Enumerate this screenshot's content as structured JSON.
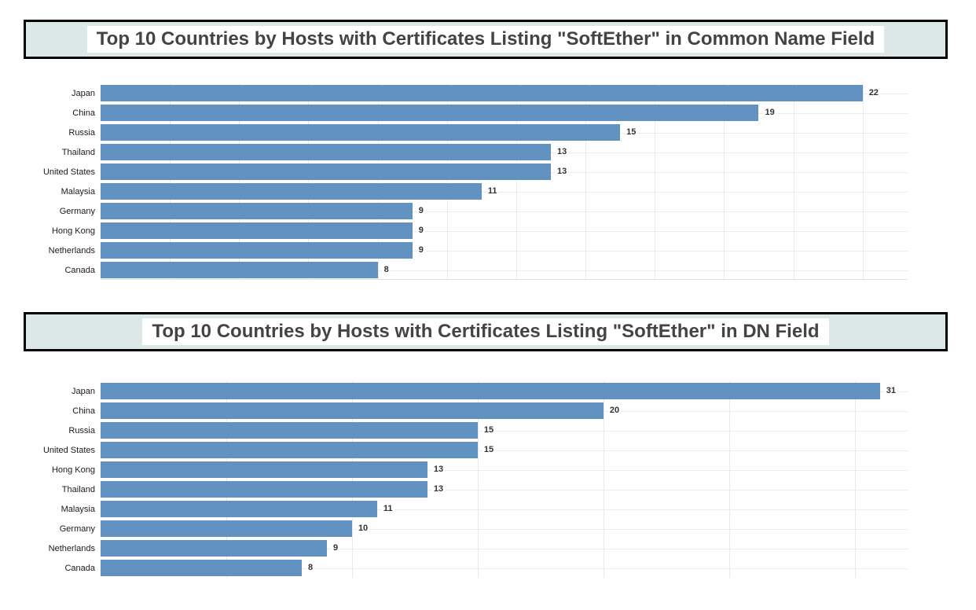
{
  "theme": {
    "bar_color": "#6292c2",
    "vertical_grid_color": "#e9e9e9",
    "category_grid_color": "#ebebeb",
    "title_text_color": "#444444",
    "title_box_bg": "#dce8e8",
    "title_box_border": "#000000",
    "value_label_color": "#333333",
    "category_label_color": "#1a1a1a",
    "page_bg": "#ffffff"
  },
  "chart_data": [
    {
      "type": "bar",
      "orientation": "horizontal",
      "title": "Top 10 Countries by Hosts with Certificates Listing \"SoftEther\" in Common Name Field",
      "categories": [
        "Japan",
        "China",
        "Russia",
        "Thailand",
        "United States",
        "Malaysia",
        "Germany",
        "Hong Kong",
        "Netherlands",
        "Canada"
      ],
      "values": [
        22,
        19,
        15,
        13,
        13,
        11,
        9,
        9,
        9,
        8
      ],
      "xlabel": "",
      "ylabel": "",
      "xlim": [
        0,
        23.3
      ],
      "x_dtick": 2,
      "grid": true,
      "legend": false,
      "value_labels": true,
      "bottom_axis": true,
      "bar_color": "#6292c2"
    },
    {
      "type": "bar",
      "orientation": "horizontal",
      "title": "Top 10 Countries by Hosts with Certificates Listing \"SoftEther\" in DN Field",
      "categories": [
        "Japan",
        "China",
        "Russia",
        "United States",
        "Hong Kong",
        "Thailand",
        "Malaysia",
        "Germany",
        "Netherlands",
        "Canada"
      ],
      "values": [
        31,
        20,
        15,
        15,
        13,
        13,
        11,
        10,
        9,
        8
      ],
      "xlabel": "",
      "ylabel": "",
      "xlim": [
        0,
        32.1
      ],
      "x_dtick": 5,
      "grid": true,
      "legend": false,
      "value_labels": true,
      "bottom_axis": false,
      "bar_color": "#6292c2"
    }
  ]
}
